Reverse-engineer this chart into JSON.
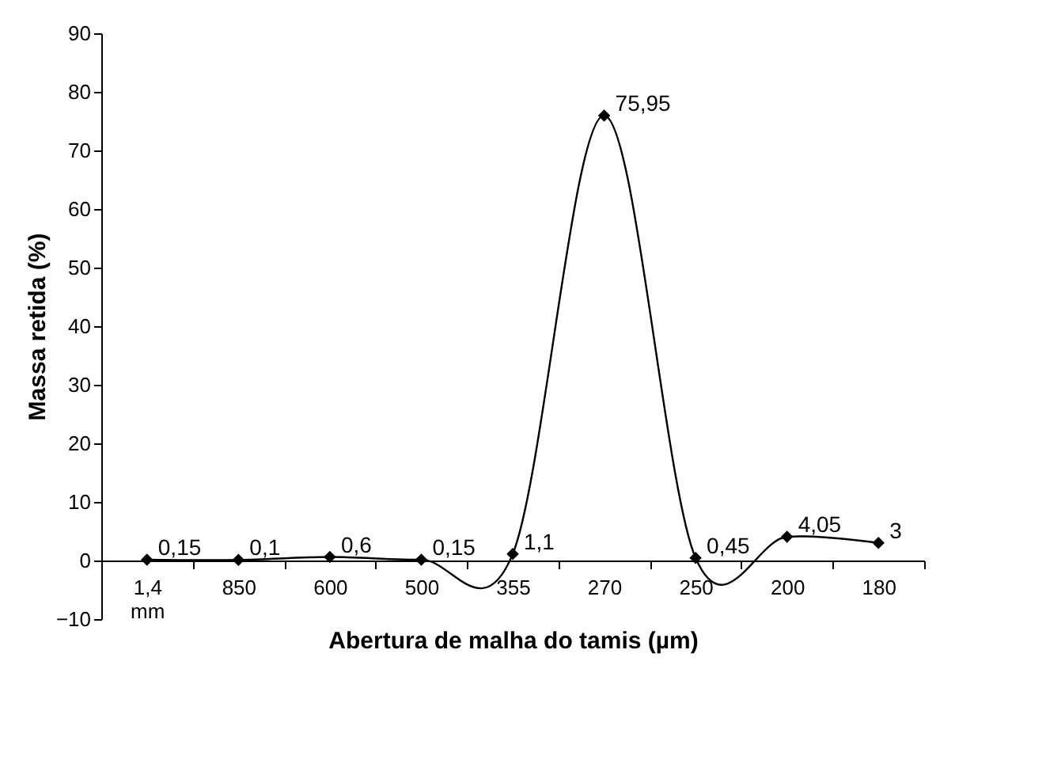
{
  "chart_data": {
    "type": "line",
    "xlabel": "Abertura de malha do tamis (µm)",
    "ylabel": "Massa retida (%)",
    "categories": [
      "1,4 mm",
      "850",
      "600",
      "500",
      "355",
      "270",
      "250",
      "200",
      "180"
    ],
    "series": [
      {
        "color": "#000000",
        "values": [
          0.15,
          0.1,
          0.6,
          0.15,
          1.1,
          75.95,
          0.45,
          4.05,
          3
        ],
        "value_labels": [
          "0,15",
          "0,1",
          "0,6",
          "0,15",
          "1,1",
          "75,95",
          "0,45",
          "4,05",
          "3"
        ]
      }
    ],
    "ylim": [
      -10,
      90
    ],
    "yticks": [
      -10,
      0,
      10,
      20,
      30,
      40,
      50,
      60,
      70,
      80,
      90
    ],
    "grid": false,
    "marker": "diamond",
    "line_style": "solid"
  }
}
